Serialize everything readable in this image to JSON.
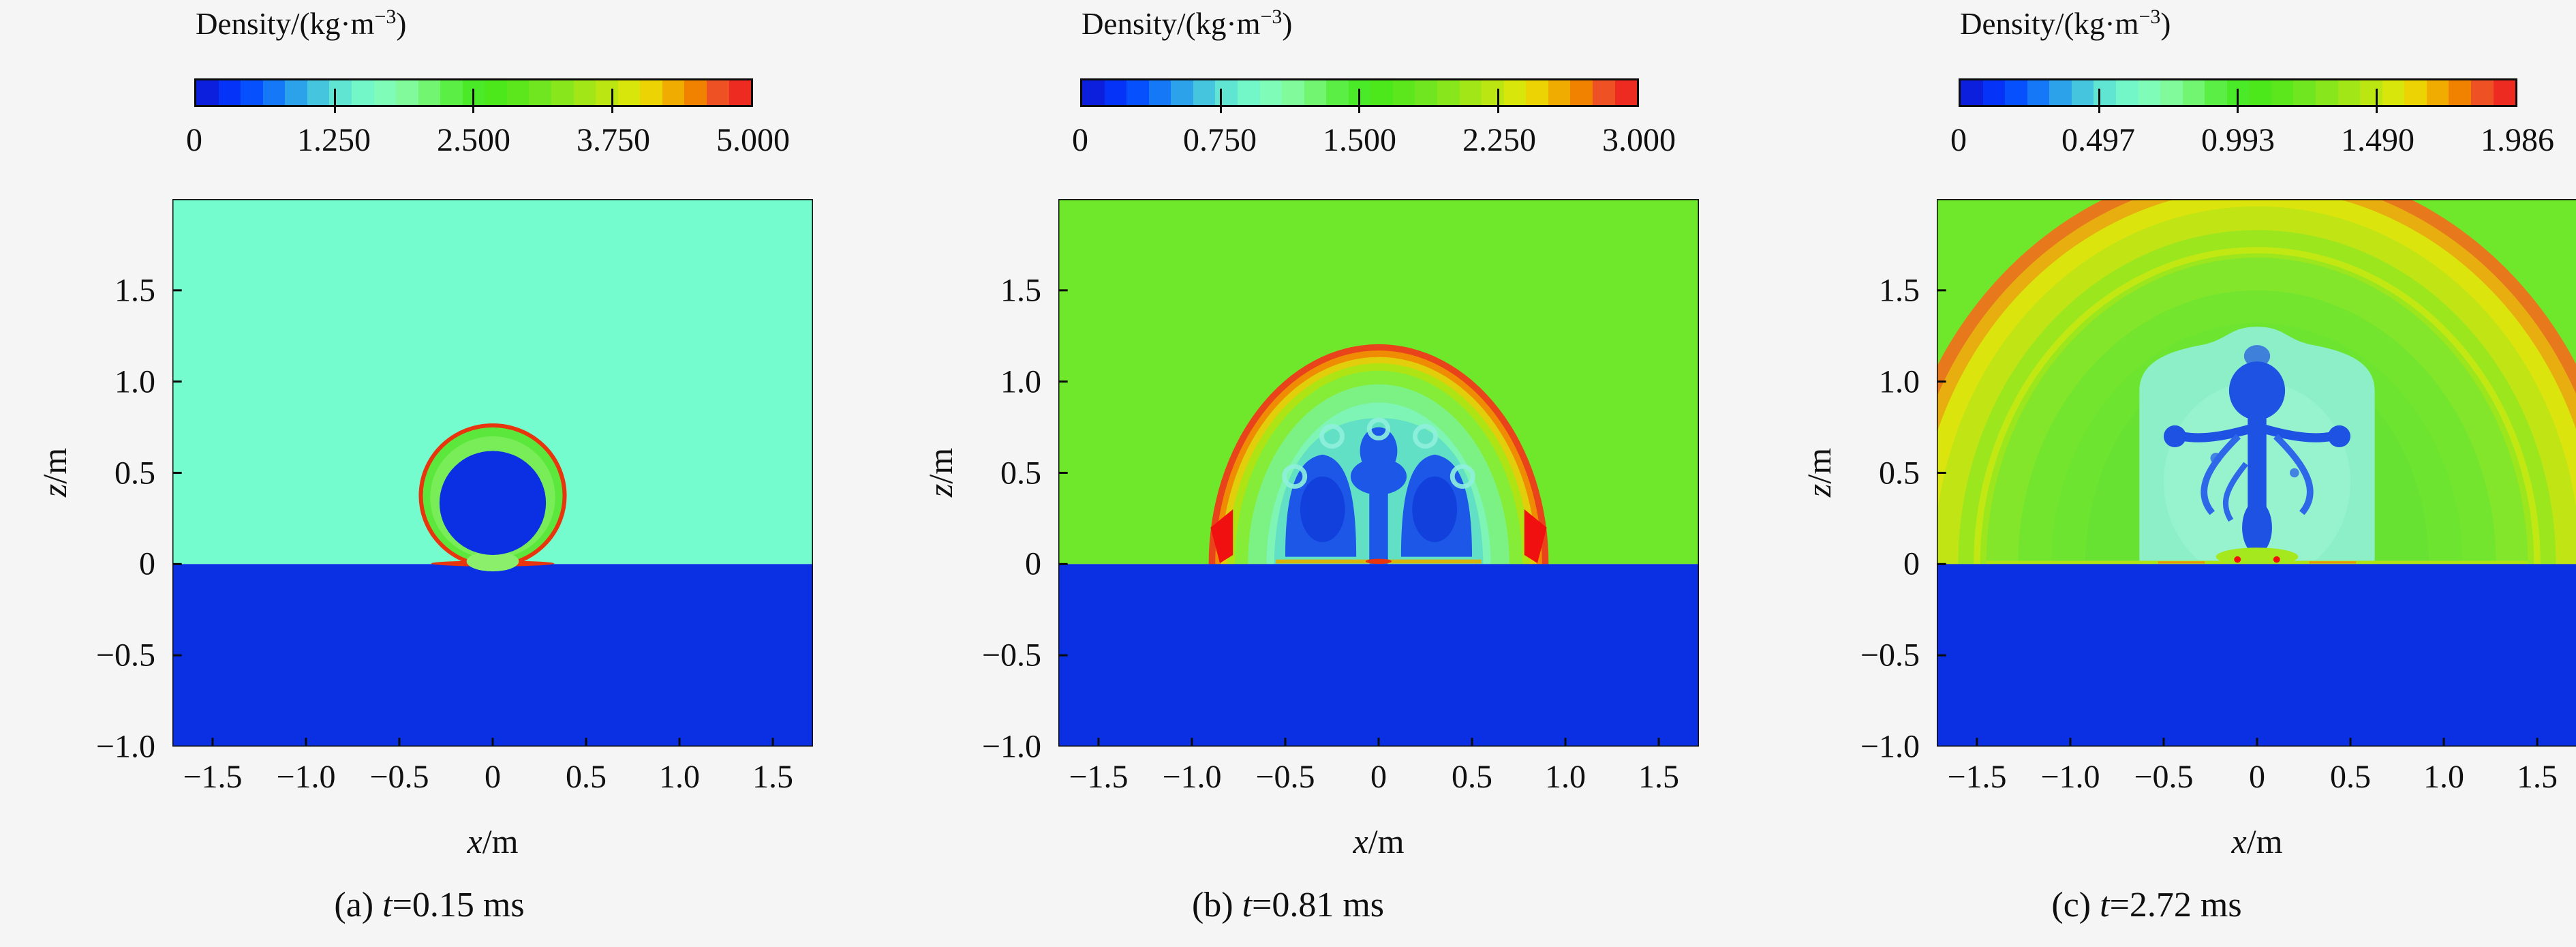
{
  "figure": {
    "description": "Three density contour snapshots of a near-surface explosion over water at successive times",
    "background": "#f6f5f6"
  },
  "axes": {
    "x_var": "x",
    "x_unit": "/m",
    "z_var": "z",
    "z_unit": "/m",
    "x_ticks": [
      "−1.5",
      "−1.0",
      "−0.5",
      "0",
      "0.5",
      "1.0",
      "1.5"
    ],
    "z_ticks": [
      "1.5",
      "1.0",
      "0.5",
      "0",
      "−0.5",
      "−1.0"
    ]
  },
  "panels": [
    {
      "caption": {
        "prefix": "(a) ",
        "var": "t",
        "rest": "=0.15 ms"
      },
      "colorbar": {
        "title_prefix": "Density/(kg·m",
        "title_sup": "−3",
        "title_suffix": ")",
        "labels": [
          "0",
          "1.250",
          "2.500",
          "3.750",
          "5.000"
        ]
      }
    },
    {
      "caption": {
        "prefix": "(b) ",
        "var": "t",
        "rest": "=0.81 ms"
      },
      "colorbar": {
        "title_prefix": "Density/(kg·m",
        "title_sup": "−3",
        "title_suffix": ")",
        "labels": [
          "0",
          "0.750",
          "1.500",
          "2.250",
          "3.000"
        ]
      }
    },
    {
      "caption": {
        "prefix": "(c) ",
        "var": "t",
        "rest": "=2.72 ms"
      },
      "colorbar": {
        "title_prefix": "Density/(kg·m",
        "title_sup": "−3",
        "title_suffix": ")",
        "labels": [
          "0",
          "0.497",
          "0.993",
          "1.490",
          "1.986"
        ]
      }
    }
  ],
  "colormap": {
    "type": "discretized rainbow (jet-like)",
    "n_steps": 25,
    "stops": [
      [
        0.0,
        "#1118c8"
      ],
      [
        0.04,
        "#0726f0"
      ],
      [
        0.08,
        "#0440ff"
      ],
      [
        0.12,
        "#0a60fc"
      ],
      [
        0.16,
        "#2090f0"
      ],
      [
        0.2,
        "#38b4e4"
      ],
      [
        0.24,
        "#52d8d8"
      ],
      [
        0.28,
        "#6bf2cc"
      ],
      [
        0.32,
        "#7bfcc4"
      ],
      [
        0.36,
        "#83fbac"
      ],
      [
        0.4,
        "#7df989"
      ],
      [
        0.44,
        "#66f259"
      ],
      [
        0.48,
        "#50ec33"
      ],
      [
        0.52,
        "#46e81e"
      ],
      [
        0.56,
        "#52e81a"
      ],
      [
        0.62,
        "#6fe620"
      ],
      [
        0.68,
        "#95e61a"
      ],
      [
        0.74,
        "#bce612"
      ],
      [
        0.78,
        "#d9e60c"
      ],
      [
        0.82,
        "#ecd404"
      ],
      [
        0.86,
        "#f0ac00"
      ],
      [
        0.9,
        "#f08200"
      ],
      [
        0.94,
        "#ee5224"
      ],
      [
        1.0,
        "#ec1820"
      ]
    ]
  },
  "colors": {
    "frame": "#0b0b0b",
    "water": "#0b2fe2",
    "a_air": "#74fcce",
    "a_ring_green": "#5ce73c",
    "a_ring_light": "#79ed57",
    "a_bump": "#8bef6b",
    "a_red": "#e8350e",
    "a_core": "#0b2fe2",
    "b_air": "#6fe72a",
    "b_bands": [
      "#e8431a",
      "#f08c04",
      "#e2ce0a",
      "#aee414",
      "#85ec38",
      "#7df284",
      "#7ef5b5",
      "#7ff7c8"
    ],
    "b_turquoise": "#62e0c6",
    "b_filigree": "#8ff0dc",
    "b_blue": "#1c57e8",
    "b_blue_dark": "#1240dc",
    "b_red": "#f01010",
    "b_base": "#d8b60c",
    "c_air": "#6fe72a",
    "c_bands": [
      "#e8781c",
      "#e8ae10",
      "#dce40e",
      "#c0e414",
      "#9ce61e",
      "#84e62a",
      "#73e52e",
      "#6ce430",
      "#67e233"
    ],
    "c_arc_yellow": "#d2e80e",
    "c_cloud": "#8defc7",
    "c_cloud_light": "#97f2ce",
    "c_blue": "#1e52e2",
    "c_blue_mid": "#2e68e8",
    "c_base": "#b2e414",
    "c_pad": "#a6e81e",
    "c_orange": "#e89a0c",
    "c_red": "#f01010"
  },
  "chart_data": [
    {
      "type": "heatmap",
      "title": "(a) t=0.15 ms",
      "time_ms": 0.15,
      "colorbar": {
        "label": "Density/(kg·m−3)",
        "min": 0,
        "max": 5.0,
        "tick_values": [
          0,
          1.25,
          2.5,
          3.75,
          5.0
        ]
      },
      "x_axis": {
        "label": "x/m",
        "range": [
          -1.7,
          1.7
        ],
        "ticks": [
          -1.5,
          -1.0,
          -0.5,
          0,
          0.5,
          1.0,
          1.5
        ]
      },
      "z_axis": {
        "label": "z/m",
        "range": [
          -1.0,
          2.0
        ],
        "ticks": [
          -1.0,
          -0.5,
          0,
          0.5,
          1.0,
          1.5
        ]
      },
      "features": {
        "water_region": "z < 0 uniform dark blue (water)",
        "air_region": "z > 0 uniform aquamarine, ambient air density ≈ 1.225 kg·m−3",
        "fireball": "circular detonation-product bubble: dark blue core r ≈ 0.29 m centered (0, 0.34 m), green shocked-gas annulus, thin red shock front outer r ≈ 0.39 m resting on the water surface"
      }
    },
    {
      "type": "heatmap",
      "title": "(b) t=0.81 ms",
      "time_ms": 0.81,
      "colorbar": {
        "label": "Density/(kg·m−3)",
        "min": 0,
        "max": 3.0,
        "tick_values": [
          0,
          0.75,
          1.5,
          2.25,
          3.0
        ]
      },
      "x_axis": {
        "label": "x/m",
        "range": [
          -1.7,
          1.7
        ],
        "ticks": [
          -1.5,
          -1.0,
          -0.5,
          0,
          0.5,
          1.0,
          1.5
        ]
      },
      "z_axis": {
        "label": "z/m",
        "range": [
          -1.0,
          2.0
        ],
        "ticks": [
          -1.0,
          -0.5,
          0,
          0.5,
          1.0,
          1.5
        ]
      },
      "features": {
        "water_region": "z < 0 uniform dark blue (water)",
        "air_region": "z > 0 uniform bright green",
        "shock_dome": "hemispherical red/orange shock front, apex z ≈ 1.19 m, base half-width ≈ 0.90 m, yellow–green compressed layers inside",
        "products": "turquoise-outlined blue toroidal vortex / mushroom structures up to z ≈ 0.8 m with central stem on axis",
        "mach_jets": "red high-density wedges at shock base near x ≈ ±0.86 m"
      }
    },
    {
      "type": "heatmap",
      "title": "(c) t=2.72 ms",
      "time_ms": 2.72,
      "colorbar": {
        "label": "Density/(kg·m−3)",
        "min": 0,
        "max": 1.986,
        "tick_values": [
          0,
          0.497,
          0.993,
          1.49,
          1.986
        ]
      },
      "x_axis": {
        "label": "x/m",
        "range": [
          -1.7,
          1.7
        ],
        "ticks": [
          -1.5,
          -1.0,
          -0.5,
          0,
          0.5,
          1.0,
          1.5
        ]
      },
      "z_axis": {
        "label": "z/m",
        "range": [
          -1.0,
          2.0
        ],
        "ticks": [
          -1.0,
          -0.5,
          0,
          0.5,
          1.0,
          1.5
        ]
      },
      "features": {
        "water_region": "z < 0 uniform dark blue (water)",
        "air_region": "bright green with concentric yellow-green bands",
        "shock_dome": "expanded orange shock arc radius ≈ 2 m crossing the top of the frame (top crossings x ≈ ±0.78 m, side crossings z ≈ 0.9 m)",
        "products": "pale cyan product cloud |x| ≤ 0.63 m up to z ≈ 1.2 m containing dark blue vortex mushroom column on axis (head at z ≈ 0.95 m, arms to x ≈ ±0.45 m)",
        "ground_hot_spots": "small red spots near surface at x ≈ ±0.1 m with yellow-green layer along z ≈ 0"
      }
    }
  ]
}
